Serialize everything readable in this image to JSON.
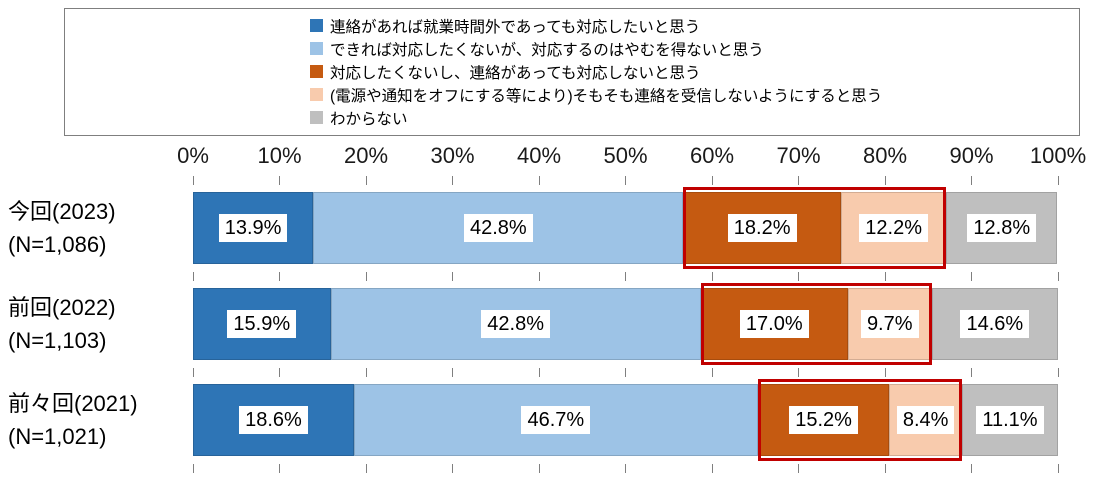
{
  "legend": {
    "items": [
      {
        "label": "連絡があれば就業時間外であっても対応したいと思う",
        "color": "#2E75B6"
      },
      {
        "label": "できれば対応したくないが、対応するのはやむを得ないと思う",
        "color": "#9DC3E6"
      },
      {
        "label": "対応したくないし、連絡があっても対応しないと思う",
        "color": "#C55A11"
      },
      {
        "label": "(電源や通知をオフにする等により)そもそも連絡を受信しないようにすると思う",
        "color": "#F8CBAD"
      },
      {
        "label": "わからない",
        "color": "#BFBFBF"
      }
    ]
  },
  "chart_data": {
    "type": "bar",
    "orientation": "horizontal",
    "stacked": true,
    "unit": "%",
    "xlim": [
      0,
      100
    ],
    "x_tick_labels": [
      "0%",
      "10%",
      "20%",
      "30%",
      "40%",
      "50%",
      "60%",
      "70%",
      "80%",
      "90%",
      "100%"
    ],
    "categories": [
      {
        "line1": "今回(2023)",
        "line2": "(N=1,086)"
      },
      {
        "line1": "前回(2022)",
        "line2": "(N=1,103)"
      },
      {
        "line1": "前々回(2021)",
        "line2": "(N=1,021)"
      }
    ],
    "series": [
      {
        "name": "連絡があれば就業時間外であっても対応したいと思う",
        "color": "#2E75B6",
        "values": [
          13.9,
          15.9,
          18.6
        ],
        "labels": [
          "13.9%",
          "15.9%",
          "18.6%"
        ]
      },
      {
        "name": "できれば対応したくないが、対応するのはやむを得ないと思う",
        "color": "#9DC3E6",
        "values": [
          42.8,
          42.8,
          46.7
        ],
        "labels": [
          "42.8%",
          "42.8%",
          "46.7%"
        ]
      },
      {
        "name": "対応したくないし、連絡があっても対応しないと思う",
        "color": "#C55A11",
        "values": [
          18.2,
          17.0,
          15.2
        ],
        "labels": [
          "18.2%",
          "17.0%",
          "15.2%"
        ]
      },
      {
        "name": "(電源や通知をオフにする等により)そもそも連絡を受信しないようにすると思う",
        "color": "#F8CBAD",
        "values": [
          12.2,
          9.7,
          8.4
        ],
        "labels": [
          "12.2%",
          "9.7%",
          "8.4%"
        ]
      },
      {
        "name": "わからない",
        "color": "#BFBFBF",
        "values": [
          12.8,
          14.6,
          11.1
        ],
        "labels": [
          "12.8%",
          "14.6%",
          "11.1%"
        ]
      }
    ],
    "highlight": {
      "series_indexes": [
        2,
        3
      ],
      "border_color": "#C00000"
    }
  }
}
